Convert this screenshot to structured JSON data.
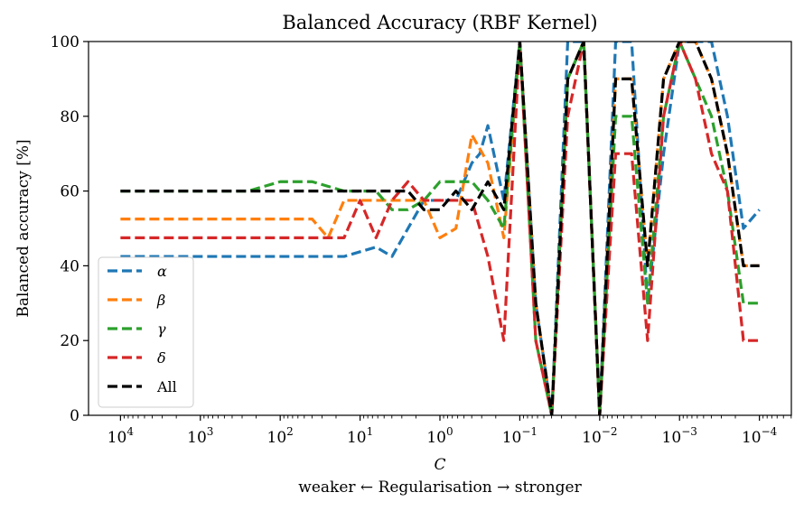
{
  "chart_data": {
    "type": "line",
    "title": "Balanced Accuracy (RBF Kernel)",
    "xlabel": "C",
    "xlabel_sub": "weaker ← Regularisation → stronger",
    "ylabel": "Balanced accuracy [%]",
    "xscale": "log",
    "x_reversed": true,
    "xlim_log10": [
      4.4,
      -4.4
    ],
    "ylim": [
      0,
      100
    ],
    "yticks": [
      0,
      20,
      40,
      60,
      80,
      100
    ],
    "xticks": [
      {
        "exp": 4,
        "base": "10",
        "sup": "4"
      },
      {
        "exp": 3,
        "base": "10",
        "sup": "3"
      },
      {
        "exp": 2,
        "base": "10",
        "sup": "2"
      },
      {
        "exp": 1,
        "base": "10",
        "sup": "1"
      },
      {
        "exp": 0,
        "base": "10",
        "sup": "0"
      },
      {
        "exp": -1,
        "base": "10",
        "sup": "−1"
      },
      {
        "exp": -2,
        "base": "10",
        "sup": "−2"
      },
      {
        "exp": -3,
        "base": "10",
        "sup": "−3"
      },
      {
        "exp": -4,
        "base": "10",
        "sup": "−4"
      }
    ],
    "legend_position": "lower-left",
    "series": [
      {
        "name": "α",
        "color": "#1f77b4",
        "points": [
          [
            4.0,
            42.5
          ],
          [
            3.6,
            42.5
          ],
          [
            3.2,
            42.5
          ],
          [
            2.8,
            42.5
          ],
          [
            2.4,
            42.5
          ],
          [
            2.0,
            42.5
          ],
          [
            1.6,
            42.5
          ],
          [
            1.2,
            42.5
          ],
          [
            0.8,
            45
          ],
          [
            0.6,
            42.5
          ],
          [
            0.4,
            50
          ],
          [
            0.2,
            57.5
          ],
          [
            0.0,
            57.5
          ],
          [
            -0.2,
            57.5
          ],
          [
            -0.4,
            67.5
          ],
          [
            -0.5,
            70
          ],
          [
            -0.6,
            77.5
          ],
          [
            -0.8,
            57.5
          ],
          [
            -1.0,
            100
          ],
          [
            -1.2,
            30
          ],
          [
            -1.4,
            0
          ],
          [
            -1.6,
            100
          ],
          [
            -1.8,
            100
          ],
          [
            -2.0,
            0
          ],
          [
            -2.2,
            100
          ],
          [
            -2.4,
            100
          ],
          [
            -2.6,
            30
          ],
          [
            -2.8,
            70
          ],
          [
            -3.0,
            100
          ],
          [
            -3.2,
            100
          ],
          [
            -3.4,
            100
          ],
          [
            -3.6,
            80
          ],
          [
            -3.8,
            50
          ],
          [
            -4.0,
            55
          ]
        ]
      },
      {
        "name": "β",
        "color": "#ff7f0e",
        "points": [
          [
            4.0,
            52.5
          ],
          [
            3.6,
            52.5
          ],
          [
            3.2,
            52.5
          ],
          [
            2.8,
            52.5
          ],
          [
            2.4,
            52.5
          ],
          [
            2.0,
            52.5
          ],
          [
            1.6,
            52.5
          ],
          [
            1.4,
            47.5
          ],
          [
            1.2,
            57.5
          ],
          [
            0.8,
            57.5
          ],
          [
            0.4,
            57.5
          ],
          [
            0.2,
            57.5
          ],
          [
            0.0,
            47.5
          ],
          [
            -0.2,
            50
          ],
          [
            -0.4,
            75
          ],
          [
            -0.6,
            67.5
          ],
          [
            -0.8,
            47.5
          ],
          [
            -1.0,
            100
          ],
          [
            -1.2,
            30
          ],
          [
            -1.4,
            0
          ],
          [
            -1.6,
            90
          ],
          [
            -1.8,
            100
          ],
          [
            -2.0,
            0
          ],
          [
            -2.2,
            90
          ],
          [
            -2.4,
            90
          ],
          [
            -2.6,
            40
          ],
          [
            -2.8,
            90
          ],
          [
            -3.0,
            100
          ],
          [
            -3.2,
            100
          ],
          [
            -3.4,
            90
          ],
          [
            -3.6,
            70
          ],
          [
            -3.8,
            40
          ],
          [
            -4.0,
            40
          ]
        ]
      },
      {
        "name": "γ",
        "color": "#2ca02c",
        "points": [
          [
            4.0,
            60
          ],
          [
            3.6,
            60
          ],
          [
            3.2,
            60
          ],
          [
            2.8,
            60
          ],
          [
            2.4,
            60
          ],
          [
            2.0,
            62.5
          ],
          [
            1.6,
            62.5
          ],
          [
            1.2,
            60
          ],
          [
            0.8,
            60
          ],
          [
            0.6,
            55
          ],
          [
            0.4,
            55
          ],
          [
            0.2,
            57.5
          ],
          [
            0.0,
            62.5
          ],
          [
            -0.2,
            62.5
          ],
          [
            -0.4,
            62.5
          ],
          [
            -0.6,
            57.5
          ],
          [
            -0.8,
            50
          ],
          [
            -1.0,
            100
          ],
          [
            -1.2,
            20
          ],
          [
            -1.4,
            0
          ],
          [
            -1.6,
            90
          ],
          [
            -1.8,
            100
          ],
          [
            -2.0,
            0
          ],
          [
            -2.2,
            80
          ],
          [
            -2.4,
            80
          ],
          [
            -2.6,
            30
          ],
          [
            -2.8,
            80
          ],
          [
            -3.0,
            100
          ],
          [
            -3.2,
            90
          ],
          [
            -3.4,
            80
          ],
          [
            -3.6,
            60
          ],
          [
            -3.8,
            30
          ],
          [
            -4.0,
            30
          ]
        ]
      },
      {
        "name": "δ",
        "color": "#d62728",
        "points": [
          [
            4.0,
            47.5
          ],
          [
            3.6,
            47.5
          ],
          [
            3.2,
            47.5
          ],
          [
            2.8,
            47.5
          ],
          [
            2.4,
            47.5
          ],
          [
            2.0,
            47.5
          ],
          [
            1.6,
            47.5
          ],
          [
            1.2,
            47.5
          ],
          [
            1.0,
            57.5
          ],
          [
            0.8,
            47.5
          ],
          [
            0.6,
            57.5
          ],
          [
            0.4,
            62.5
          ],
          [
            0.2,
            57.5
          ],
          [
            0.0,
            57.5
          ],
          [
            -0.2,
            57.5
          ],
          [
            -0.4,
            57.5
          ],
          [
            -0.6,
            42.5
          ],
          [
            -0.8,
            20
          ],
          [
            -1.0,
            100
          ],
          [
            -1.2,
            20
          ],
          [
            -1.4,
            0
          ],
          [
            -1.6,
            80
          ],
          [
            -1.8,
            100
          ],
          [
            -2.0,
            0
          ],
          [
            -2.2,
            70
          ],
          [
            -2.4,
            70
          ],
          [
            -2.6,
            20
          ],
          [
            -2.8,
            80
          ],
          [
            -3.0,
            100
          ],
          [
            -3.2,
            90
          ],
          [
            -3.4,
            70
          ],
          [
            -3.6,
            60
          ],
          [
            -3.8,
            20
          ],
          [
            -4.0,
            20
          ]
        ]
      },
      {
        "name": "All",
        "color": "#000000",
        "points": [
          [
            4.0,
            60
          ],
          [
            3.6,
            60
          ],
          [
            3.2,
            60
          ],
          [
            2.8,
            60
          ],
          [
            2.4,
            60
          ],
          [
            2.0,
            60
          ],
          [
            1.6,
            60
          ],
          [
            1.2,
            60
          ],
          [
            0.8,
            60
          ],
          [
            0.4,
            60
          ],
          [
            0.2,
            55
          ],
          [
            0.0,
            55
          ],
          [
            -0.2,
            60
          ],
          [
            -0.4,
            55
          ],
          [
            -0.6,
            62.5
          ],
          [
            -0.8,
            55
          ],
          [
            -1.0,
            100
          ],
          [
            -1.2,
            30
          ],
          [
            -1.4,
            0
          ],
          [
            -1.6,
            90
          ],
          [
            -1.8,
            100
          ],
          [
            -2.0,
            0
          ],
          [
            -2.2,
            90
          ],
          [
            -2.4,
            90
          ],
          [
            -2.6,
            40
          ],
          [
            -2.8,
            90
          ],
          [
            -3.0,
            100
          ],
          [
            -3.2,
            100
          ],
          [
            -3.4,
            90
          ],
          [
            -3.6,
            70
          ],
          [
            -3.8,
            40
          ],
          [
            -4.0,
            40
          ]
        ]
      }
    ]
  }
}
